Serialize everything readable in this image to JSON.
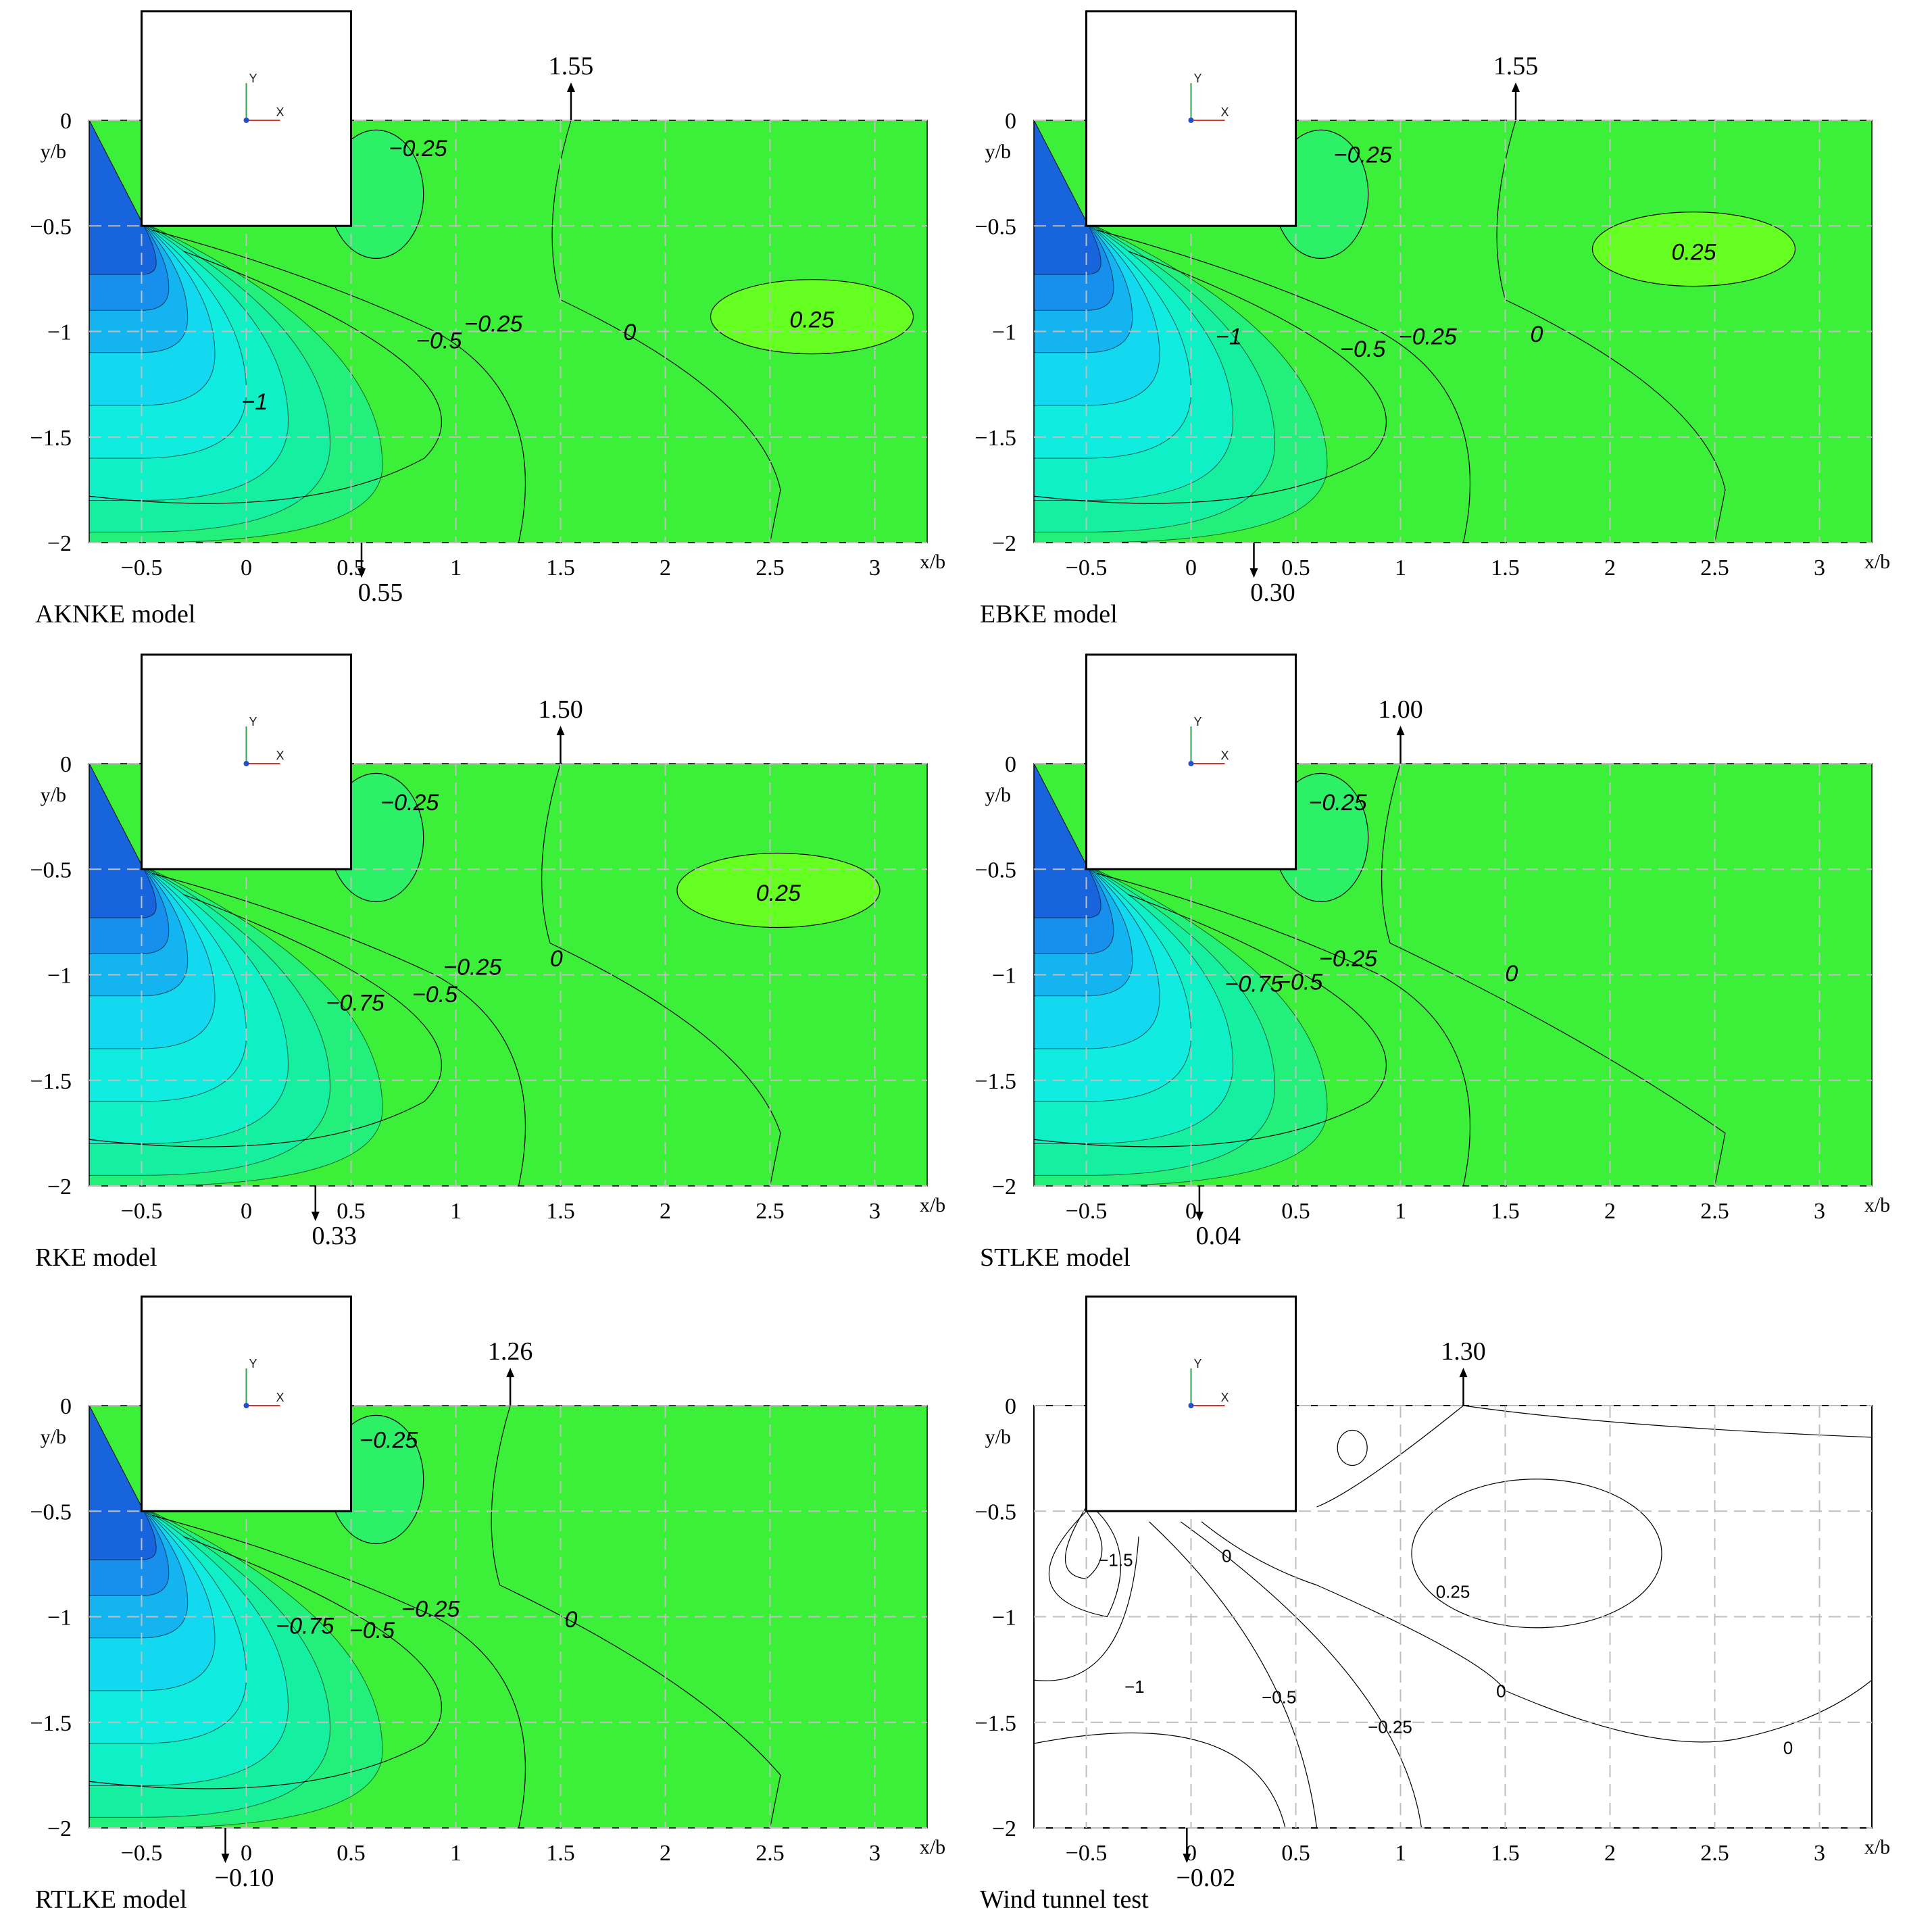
{
  "chart_data": [
    {
      "type": "contour",
      "caption": "AKNKE model",
      "xlabel": "x/b",
      "ylabel": "y/b",
      "xlim": [
        -0.75,
        3.25
      ],
      "ylim": [
        -2,
        0
      ],
      "xticks": [
        "-0.5",
        "0",
        "0.5",
        "1",
        "1.5",
        "2",
        "2.5",
        "3"
      ],
      "yticks": [
        "0",
        "-0.5",
        "-1",
        "-1.5",
        "-2"
      ],
      "contour_labels": [
        {
          "text": "-0.25",
          "x": 0.82,
          "y": -0.17
        },
        {
          "text": "-0.25",
          "x": 1.18,
          "y": -1.0
        },
        {
          "text": "-0.5",
          "x": 0.92,
          "y": -1.08
        },
        {
          "text": "0",
          "x": 1.83,
          "y": -1.04
        },
        {
          "text": "0.25",
          "x": 2.7,
          "y": -0.98
        },
        {
          "text": "-1",
          "x": 0.04,
          "y": -1.37
        }
      ],
      "separation_top": {
        "value": "1.55",
        "x": 1.55
      },
      "separation_bottom": {
        "value": "0.55",
        "x": 0.55
      },
      "filled": true
    },
    {
      "type": "contour",
      "caption": "EBKE model",
      "xlabel": "x/b",
      "ylabel": "y/b",
      "xlim": [
        -0.75,
        3.25
      ],
      "ylim": [
        -2,
        0
      ],
      "xticks": [
        "-0.5",
        "0",
        "0.5",
        "1",
        "1.5",
        "2",
        "2.5",
        "3"
      ],
      "yticks": [
        "0",
        "-0.5",
        "-1",
        "-1.5",
        "-2"
      ],
      "contour_labels": [
        {
          "text": "-0.25",
          "x": 0.82,
          "y": -0.2
        },
        {
          "text": "0.25",
          "x": 2.4,
          "y": -0.66
        },
        {
          "text": "-1",
          "x": 0.18,
          "y": -1.06
        },
        {
          "text": "-0.25",
          "x": 1.13,
          "y": -1.06
        },
        {
          "text": "-0.5",
          "x": 0.82,
          "y": -1.12
        },
        {
          "text": "0",
          "x": 1.65,
          "y": -1.05
        }
      ],
      "separation_top": {
        "value": "1.55",
        "x": 1.55
      },
      "separation_bottom": {
        "value": "0.30",
        "x": 0.3
      },
      "filled": true
    },
    {
      "type": "contour",
      "caption": "RKE model",
      "xlabel": "x/b",
      "ylabel": "y/b",
      "xlim": [
        -0.75,
        3.25
      ],
      "ylim": [
        -2,
        0
      ],
      "xticks": [
        "-0.5",
        "0",
        "0.5",
        "1",
        "1.5",
        "2",
        "2.5",
        "3"
      ],
      "yticks": [
        "0",
        "-0.5",
        "-1",
        "-1.5",
        "-2"
      ],
      "contour_labels": [
        {
          "text": "-0.25",
          "x": 0.78,
          "y": -0.22
        },
        {
          "text": "0.25",
          "x": 2.54,
          "y": -0.65
        },
        {
          "text": "-0.25",
          "x": 1.08,
          "y": -1.0
        },
        {
          "text": "-0.5",
          "x": 0.9,
          "y": -1.13
        },
        {
          "text": "-0.75",
          "x": 0.52,
          "y": -1.17
        },
        {
          "text": "0",
          "x": 1.48,
          "y": -0.96
        }
      ],
      "separation_top": {
        "value": "1.50",
        "x": 1.5
      },
      "separation_bottom": {
        "value": "0.33",
        "x": 0.33
      },
      "filled": true
    },
    {
      "type": "contour",
      "caption": "STLKE model",
      "xlabel": "x/b",
      "ylabel": "y/b",
      "xlim": [
        -0.75,
        3.25
      ],
      "ylim": [
        -2,
        0
      ],
      "xticks": [
        "-0.5",
        "0",
        "0.5",
        "1",
        "1.5",
        "2",
        "2.5",
        "3"
      ],
      "yticks": [
        "0",
        "-0.5",
        "-1",
        "-1.5",
        "-2"
      ],
      "contour_labels": [
        {
          "text": "-0.25",
          "x": 0.7,
          "y": -0.22
        },
        {
          "text": "-0.25",
          "x": 0.75,
          "y": -0.96
        },
        {
          "text": "-0.5",
          "x": 0.52,
          "y": -1.07
        },
        {
          "text": "-0.75",
          "x": 0.3,
          "y": -1.08
        },
        {
          "text": "0",
          "x": 1.53,
          "y": -1.03
        }
      ],
      "separation_top": {
        "value": "1.00",
        "x": 1.0
      },
      "separation_bottom": {
        "value": "0.04",
        "x": 0.04
      },
      "filled": true
    },
    {
      "type": "contour",
      "caption": "RTLKE model",
      "xlabel": "x/b",
      "ylabel": "y/b",
      "xlim": [
        -0.75,
        3.25
      ],
      "ylim": [
        -2,
        0
      ],
      "xticks": [
        "-0.5",
        "0",
        "0.5",
        "1",
        "1.5",
        "2",
        "2.5",
        "3"
      ],
      "yticks": [
        "0",
        "-0.5",
        "-1",
        "-1.5",
        "-2"
      ],
      "contour_labels": [
        {
          "text": "-0.25",
          "x": 0.68,
          "y": -0.2
        },
        {
          "text": "-0.25",
          "x": 0.88,
          "y": -1.0
        },
        {
          "text": "-0.5",
          "x": 0.6,
          "y": -1.1
        },
        {
          "text": "-0.75",
          "x": 0.28,
          "y": -1.08
        },
        {
          "text": "0",
          "x": 1.55,
          "y": -1.05
        }
      ],
      "separation_top": {
        "value": "1.26",
        "x": 1.26
      },
      "separation_bottom": {
        "value": "-0.10",
        "x": -0.1
      },
      "filled": true
    },
    {
      "type": "contour",
      "caption": "Wind tunnel test",
      "xlabel": "x/b",
      "ylabel": "y/b",
      "xlim": [
        -0.75,
        3.25
      ],
      "ylim": [
        -2,
        0
      ],
      "xticks": [
        "-0.5",
        "0",
        "0.5",
        "1",
        "1.5",
        "2",
        "2.5",
        "3"
      ],
      "yticks": [
        "0",
        "-0.5",
        "-1",
        "-1.5",
        "-2"
      ],
      "contour_labels": [
        {
          "text": "-1.5",
          "x": -0.36,
          "y": -0.76
        },
        {
          "text": "0",
          "x": 0.17,
          "y": -0.74
        },
        {
          "text": "0.25",
          "x": 1.25,
          "y": -0.91
        },
        {
          "text": "0",
          "x": 1.48,
          "y": -1.38
        },
        {
          "text": "-1",
          "x": -0.27,
          "y": -1.36
        },
        {
          "text": "-0.5",
          "x": 0.42,
          "y": -1.41
        },
        {
          "text": "-0.25",
          "x": 0.95,
          "y": -1.55
        },
        {
          "text": "0",
          "x": 2.85,
          "y": -1.65
        }
      ],
      "separation_top": {
        "value": "1.30",
        "x": 1.3
      },
      "separation_bottom": {
        "value": "-0.02",
        "x": -0.02
      },
      "filled": false
    }
  ],
  "colors": {
    "field_base": "#3cf03a",
    "positive_zone": "#66ff22",
    "vortex_core": "#1464e6",
    "vortex_mid": "#14c8f0",
    "gridline": "#bfbfbf"
  }
}
